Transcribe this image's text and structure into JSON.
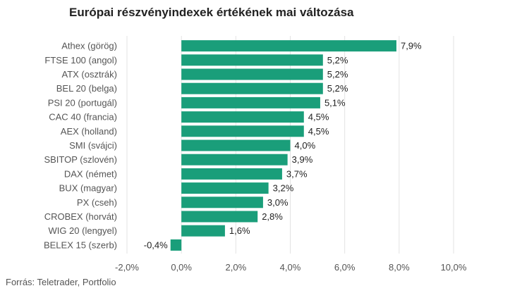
{
  "chart_data": {
    "type": "bar",
    "orientation": "horizontal",
    "title": "Európai részvényindexek értékének mai változása",
    "source": "Forrás: Teletrader, Portfolio",
    "categories": [
      "Athex (görög)",
      "FTSE 100 (angol)",
      "ATX (osztrák)",
      "BEL 20 (belga)",
      "PSI 20 (portugál)",
      "CAC 40 (francia)",
      "AEX (holland)",
      "SMI (svájci)",
      "SBITOP (szlovén)",
      "DAX (német)",
      "BUX (magyar)",
      "PX (cseh)",
      "CROBEX (horvát)",
      "WIG 20 (lengyel)",
      "BELEX 15 (szerb)"
    ],
    "values": [
      7.9,
      5.2,
      5.2,
      5.2,
      5.1,
      4.5,
      4.5,
      4.0,
      3.9,
      3.7,
      3.2,
      3.0,
      2.8,
      1.6,
      -0.4
    ],
    "value_labels": [
      "7,9%",
      "5,2%",
      "5,2%",
      "5,2%",
      "5,1%",
      "4,5%",
      "4,5%",
      "4,0%",
      "3,9%",
      "3,7%",
      "3,2%",
      "3,0%",
      "2,8%",
      "1,6%",
      "-0,4%"
    ],
    "xlim": [
      -2.0,
      10.0
    ],
    "xticks": [
      -2.0,
      0.0,
      2.0,
      4.0,
      6.0,
      8.0,
      10.0
    ],
    "xtick_labels": [
      "-2,0%",
      "0,0%",
      "2,0%",
      "4,0%",
      "6,0%",
      "8,0%",
      "10,0%"
    ],
    "grid": true,
    "legend": false,
    "bar_color": "#1a9e7a",
    "grid_color": "#e3e3e3"
  }
}
